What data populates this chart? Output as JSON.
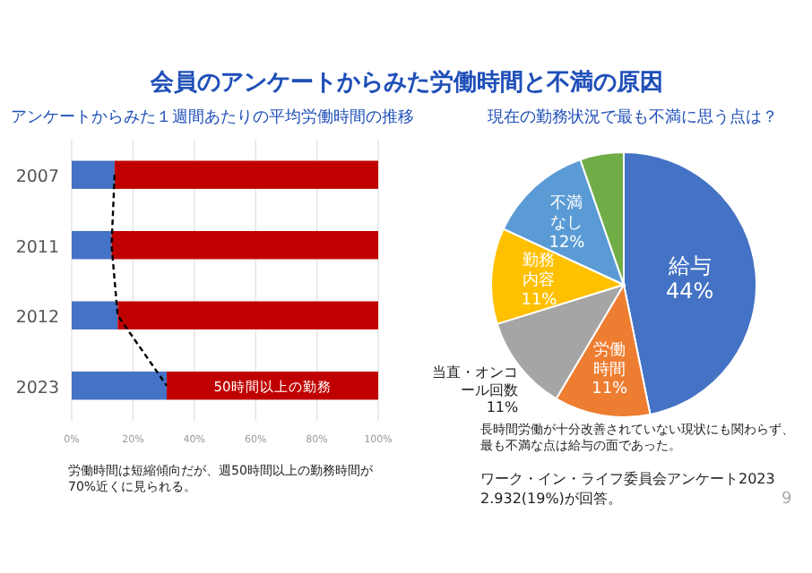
{
  "chart_data": [
    {
      "type": "bar",
      "title": "会員のアンケートからみた労働時間と不満の原因",
      "subtitle": "アンケートからみた１週間あたりの平均労働時間の推移",
      "orientation": "horizontal",
      "stacked": true,
      "categories": [
        "2007",
        "2011",
        "2012",
        "2023"
      ],
      "series": [
        {
          "color": "#4472c4",
          "values": [
            14,
            13,
            15,
            31
          ]
        },
        {
          "name": "50時間以上の勤務",
          "color": "#c00000",
          "values": [
            86,
            87,
            85,
            69
          ]
        },
        {
          "type": "line",
          "color": "#000000",
          "line_style": "dashed",
          "values": [
            14,
            13,
            15,
            31
          ]
        }
      ],
      "xlim": [
        0,
        100
      ],
      "xticks": [
        {
          "value": 0,
          "label": "0%"
        },
        {
          "value": 20,
          "label": "20%"
        },
        {
          "value": 40,
          "label": "40%"
        },
        {
          "value": 60,
          "label": "60%"
        },
        {
          "value": 80,
          "label": "80%"
        },
        {
          "value": 100,
          "label": "100%"
        }
      ],
      "grid": "x",
      "annotations": [
        "労働時間は短縮傾向だが、週50時間以上の勤務時間が70%近くに見られる。"
      ]
    },
    {
      "type": "pie",
      "title": "現在の勤務状況で最も不満に思う点は？",
      "categories": [
        "給与",
        "労働時間",
        "当直・オンコール回数",
        "勤務内容",
        "不満なし",
        null
      ],
      "values": [
        44,
        11,
        11,
        11,
        12,
        5
      ],
      "value_labels": [
        "44%",
        "11%",
        "11%",
        "11%",
        "12%",
        null
      ],
      "colors": [
        "#4472c4",
        "#ed7d31",
        "#a5a5a5",
        "#ffc000",
        "#5b9bd5",
        "#70ad47"
      ],
      "annotations": [
        "長時間労働が十分改善されていない現状にも関わらず、最も不満な点は給与の面であった。",
        "ワーク・イン・ライフ委員会アンケート2023",
        "2.932(19%)が回答。",
        "9"
      ]
    }
  ]
}
